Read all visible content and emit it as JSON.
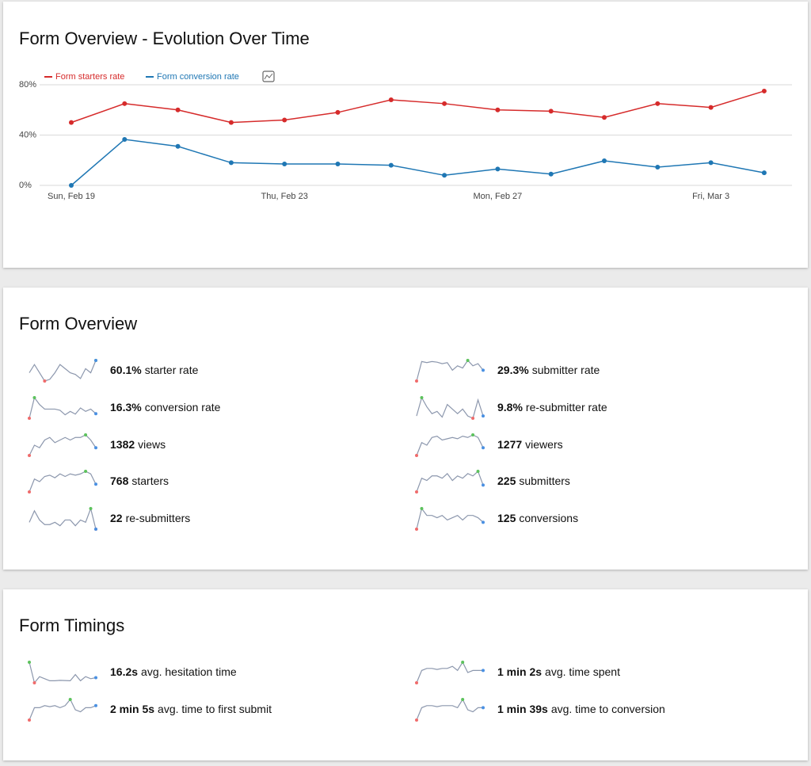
{
  "chart_data": {
    "type": "line",
    "title": "Form Overview - Evolution Over Time",
    "categories": [
      "Sun, Feb 19",
      null,
      null,
      null,
      "Thu, Feb 23",
      null,
      null,
      null,
      "Mon, Feb 27",
      null,
      null,
      null,
      "Fri, Mar 3",
      null
    ],
    "series": [
      {
        "name": "Form starters rate",
        "color": "#d62b2b",
        "values": [
          50,
          65,
          60,
          50,
          52,
          58,
          68,
          65,
          60,
          59,
          54,
          65,
          62,
          75
        ]
      },
      {
        "name": "Form conversion rate",
        "color": "#1f77b4",
        "values": [
          0,
          36.5,
          31,
          18,
          17,
          17,
          16,
          8,
          13,
          9,
          19.5,
          14.5,
          18,
          10
        ]
      }
    ],
    "ylim": [
      0,
      80
    ],
    "yticks": [
      {
        "value": 0,
        "label": "0%"
      },
      {
        "value": 40,
        "label": "40%"
      },
      {
        "value": 80,
        "label": "80%"
      }
    ],
    "grid": true
  },
  "overview": {
    "title": "Form Overview",
    "items": [
      {
        "value": "60.1%",
        "label": "starter rate",
        "trend": [
          6,
          7,
          6,
          5,
          5.2,
          6,
          7,
          6.5,
          6,
          5.8,
          5.3,
          6.5,
          6,
          7.5
        ]
      },
      {
        "value": "29.3%",
        "label": "submitter rate",
        "trend": [
          0,
          9,
          8.5,
          9,
          8.7,
          8,
          8.5,
          5,
          7,
          6,
          9.5,
          7,
          8,
          5
        ]
      },
      {
        "value": "16.3%",
        "label": "conversion rate",
        "trend": [
          0,
          9,
          6,
          4,
          4,
          4,
          3.5,
          1.5,
          3,
          1.8,
          4.5,
          3,
          4,
          2
        ]
      },
      {
        "value": "9.8%",
        "label": "re-submitter rate",
        "trend": [
          2,
          10,
          6,
          3,
          4,
          1.5,
          7,
          5,
          3,
          5,
          2,
          1,
          9,
          2
        ]
      },
      {
        "value": "1382",
        "label": "views",
        "trend": [
          0,
          4,
          3,
          6,
          7,
          5,
          6,
          7,
          6,
          7,
          7,
          8,
          6,
          3
        ]
      },
      {
        "value": "1277",
        "label": "viewers",
        "trend": [
          0,
          5,
          4,
          7,
          7.5,
          6,
          6.5,
          7,
          6.5,
          7.5,
          7,
          8,
          7,
          3
        ]
      },
      {
        "value": "768",
        "label": "starters",
        "trend": [
          0,
          5,
          4,
          6,
          6.5,
          5.5,
          7,
          6,
          7,
          6.5,
          7,
          8,
          7,
          3
        ]
      },
      {
        "value": "225",
        "label": "submitters",
        "trend": [
          0,
          6,
          5,
          7,
          7,
          6,
          8,
          5,
          7,
          6,
          8,
          7,
          9,
          3
        ]
      },
      {
        "value": "22",
        "label": "re-submitters",
        "trend": [
          3,
          8,
          4,
          2,
          2,
          3,
          1.5,
          4,
          4,
          1.5,
          4,
          3,
          9,
          0
        ]
      },
      {
        "value": "125",
        "label": "conversions",
        "trend": [
          0,
          9,
          6,
          6,
          5,
          6,
          4,
          5,
          6,
          4,
          6,
          6,
          5,
          3
        ]
      }
    ]
  },
  "timings": {
    "title": "Form Timings",
    "items": [
      {
        "value": "16.2s",
        "label": "avg. hesitation time",
        "trend": [
          10,
          0,
          3,
          2,
          1,
          1,
          1.2,
          1.1,
          1,
          4,
          1,
          3,
          2,
          2.5
        ]
      },
      {
        "value": "1 min 2s",
        "label": "avg. time spent",
        "trend": [
          0,
          6,
          7,
          7,
          6.5,
          7,
          7,
          8,
          6,
          10,
          5,
          6,
          6,
          6
        ]
      },
      {
        "value": "2 min 5s",
        "label": "avg. time to first submit",
        "trend": [
          0,
          6,
          6,
          7,
          6.5,
          7,
          6,
          7,
          10,
          5,
          4,
          6,
          6,
          7
        ]
      },
      {
        "value": "1 min 39s",
        "label": "avg. time to conversion",
        "trend": [
          0,
          6,
          7,
          7,
          6.5,
          7,
          7,
          7,
          6,
          10,
          5,
          4,
          6,
          6
        ]
      }
    ]
  }
}
